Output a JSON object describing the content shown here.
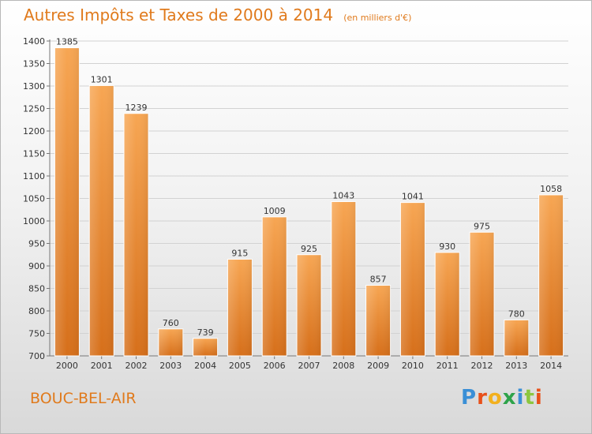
{
  "chart_data": {
    "type": "bar",
    "title": "Autres Impôts et Taxes de 2000 à 2014",
    "subtitle": "(en milliers d'€)",
    "categories": [
      "2000",
      "2001",
      "2002",
      "2003",
      "2004",
      "2005",
      "2006",
      "2007",
      "2008",
      "2009",
      "2010",
      "2011",
      "2012",
      "2013",
      "2014"
    ],
    "values": [
      1385,
      1301,
      1239,
      760,
      739,
      915,
      1009,
      925,
      1043,
      857,
      1041,
      930,
      975,
      780,
      1058
    ],
    "ylim": [
      700,
      1400
    ],
    "yticks": [
      700,
      750,
      800,
      850,
      900,
      950,
      1000,
      1050,
      1100,
      1150,
      1200,
      1250,
      1300,
      1350,
      1400
    ],
    "grid": true,
    "bar_color": "#f0892a",
    "xlabel": "",
    "ylabel": ""
  },
  "footer": {
    "city": "BOUC-BEL-AIR",
    "logo_text": "Proxiti"
  },
  "colors": {
    "title": "#e07a1c",
    "logo_letters": [
      "#3a8fd6",
      "#e8501a",
      "#f2b01e",
      "#2ea34a",
      "#3a8fd6",
      "#8cc63f",
      "#e8501a"
    ]
  }
}
